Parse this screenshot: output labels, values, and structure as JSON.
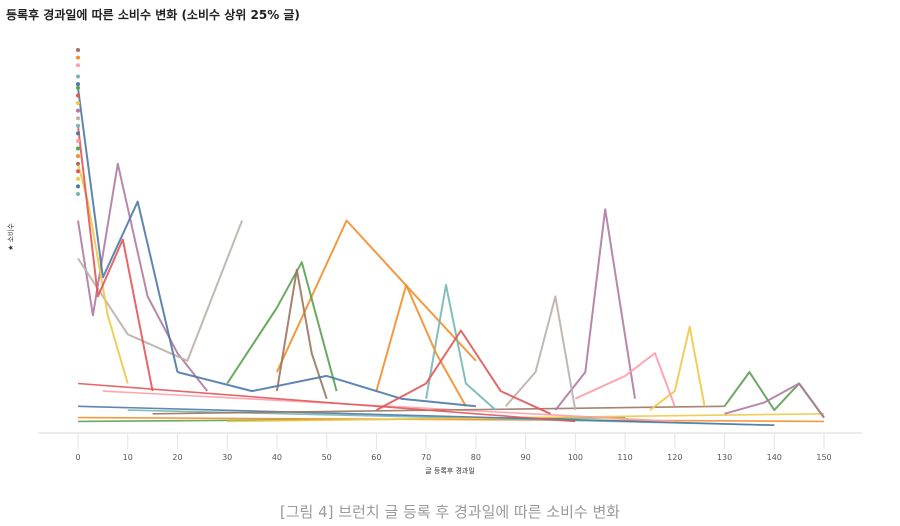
{
  "chart_data": {
    "type": "line",
    "title": "등록후 경과일에 따른 소비수 변화 (소비수 상위 25% 글)",
    "xlabel": "글 등록후 경과일",
    "ylabel": "★ 소비수",
    "xlim": [
      0,
      150
    ],
    "x_ticks": [
      0,
      10,
      20,
      30,
      40,
      50,
      60,
      70,
      80,
      90,
      100,
      110,
      120,
      130,
      140,
      150
    ],
    "y_ticks_shown": false,
    "grid": false,
    "legend": "none",
    "series_note": "many overlapping posts, each drawn as its own colored line",
    "series": [
      {
        "color": "#b07aa1",
        "x": [
          0,
          3,
          8,
          14,
          20,
          26
        ],
        "y": [
          0.55,
          0.3,
          0.7,
          0.35,
          0.2,
          0.1
        ]
      },
      {
        "color": "#f28e2b",
        "x": [
          40,
          54,
          68,
          80
        ],
        "y": [
          0.15,
          0.55,
          0.35,
          0.18
        ]
      },
      {
        "color": "#b07aa1",
        "x": [
          96,
          102,
          106,
          112
        ],
        "y": [
          0.05,
          0.15,
          0.58,
          0.08
        ]
      },
      {
        "color": "#bab0ac",
        "x": [
          0,
          10,
          22,
          33
        ],
        "y": [
          0.45,
          0.25,
          0.18,
          0.55
        ]
      },
      {
        "color": "#59a14f",
        "x": [
          30,
          40,
          45,
          52
        ],
        "y": [
          0.12,
          0.32,
          0.44,
          0.1
        ]
      },
      {
        "color": "#4e79a7",
        "x": [
          0,
          5,
          12,
          20
        ],
        "y": [
          0.9,
          0.4,
          0.6,
          0.15
        ]
      },
      {
        "color": "#edc948",
        "x": [
          0,
          2,
          6,
          10
        ],
        "y": [
          0.7,
          0.6,
          0.3,
          0.12
        ]
      },
      {
        "color": "#e15759",
        "x": [
          0,
          4,
          9,
          15
        ],
        "y": [
          0.8,
          0.35,
          0.5,
          0.1
        ]
      },
      {
        "color": "#76b7b2",
        "x": [
          70,
          74,
          78,
          84
        ],
        "y": [
          0.08,
          0.38,
          0.12,
          0.05
        ]
      },
      {
        "color": "#9c755f",
        "x": [
          40,
          44,
          47,
          50
        ],
        "y": [
          0.1,
          0.42,
          0.2,
          0.08
        ]
      },
      {
        "color": "#edc948",
        "x": [
          115,
          120,
          123,
          126
        ],
        "y": [
          0.05,
          0.1,
          0.27,
          0.06
        ]
      },
      {
        "color": "#f28e2b",
        "x": [
          60,
          66,
          72,
          78
        ],
        "y": [
          0.1,
          0.38,
          0.2,
          0.06
        ]
      },
      {
        "color": "#ff9da7",
        "x": [
          100,
          110,
          116,
          120
        ],
        "y": [
          0.08,
          0.14,
          0.2,
          0.06
        ]
      },
      {
        "color": "#bab0ac",
        "x": [
          86,
          92,
          96,
          100
        ],
        "y": [
          0.06,
          0.15,
          0.35,
          0.05
        ]
      },
      {
        "color": "#59a14f",
        "x": [
          130,
          135,
          140,
          145,
          150
        ],
        "y": [
          0.06,
          0.15,
          0.05,
          0.12,
          0.03
        ]
      },
      {
        "color": "#4e79a7",
        "x": [
          20,
          35,
          50,
          65,
          80
        ],
        "y": [
          0.15,
          0.1,
          0.14,
          0.08,
          0.06
        ]
      },
      {
        "color": "#e15759",
        "x": [
          60,
          70,
          77,
          85,
          95
        ],
        "y": [
          0.05,
          0.12,
          0.26,
          0.1,
          0.04
        ]
      },
      {
        "color": "#b07aa1",
        "x": [
          130,
          138,
          145,
          150
        ],
        "y": [
          0.04,
          0.07,
          0.12,
          0.03
        ]
      }
    ],
    "marks_series": [
      {
        "color": "#59a14f",
        "x": [
          0,
          110
        ],
        "y": [
          0.02,
          0.03
        ]
      },
      {
        "color": "#f28e2b",
        "x": [
          0,
          150
        ],
        "y": [
          0.03,
          0.02
        ]
      },
      {
        "color": "#76b7b2",
        "x": [
          10,
          140
        ],
        "y": [
          0.05,
          0.01
        ]
      },
      {
        "color": "#edc948",
        "x": [
          30,
          150
        ],
        "y": [
          0.02,
          0.04
        ]
      },
      {
        "color": "#4e79a7",
        "x": [
          0,
          140
        ],
        "y": [
          0.06,
          0.01
        ]
      },
      {
        "color": "#ff9da7",
        "x": [
          5,
          120
        ],
        "y": [
          0.1,
          0.02
        ]
      },
      {
        "color": "#9c755f",
        "x": [
          15,
          130
        ],
        "y": [
          0.04,
          0.06
        ]
      },
      {
        "color": "#e15759",
        "x": [
          0,
          100
        ],
        "y": [
          0.12,
          0.02
        ]
      }
    ],
    "origin_points": {
      "x": 0,
      "y": [
        1.0,
        0.98,
        0.96,
        0.93,
        0.91,
        0.9,
        0.88,
        0.86,
        0.84,
        0.82,
        0.8,
        0.78,
        0.76,
        0.74,
        0.72,
        0.7,
        0.68,
        0.66,
        0.64,
        0.62
      ],
      "colors": [
        "#9c755f",
        "#f28e2b",
        "#ff9da7",
        "#76b7b2",
        "#4e79a7",
        "#59a14f",
        "#e15759",
        "#edc948",
        "#b07aa1",
        "#bab0ac",
        "#76b7b2",
        "#4e79a7",
        "#ff9da7",
        "#59a14f",
        "#f28e2b",
        "#9c755f",
        "#e15759",
        "#edc948",
        "#4e79a7",
        "#76b7b2"
      ]
    }
  },
  "caption": "[그림 4] 브런치 글 등록 후 경과일에 따른 소비수 변화"
}
